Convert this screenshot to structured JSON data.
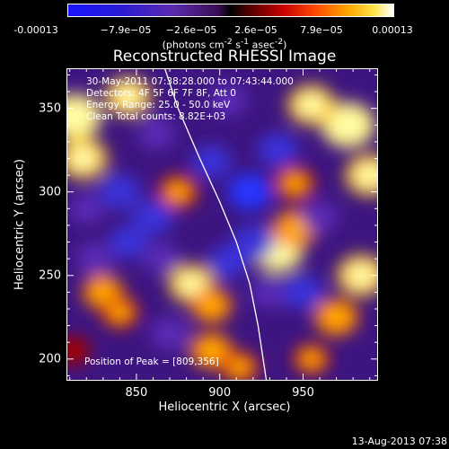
{
  "colorbar": {
    "tick_labels": [
      "-0.00013",
      "−7.9e−05",
      "−2.6e−05",
      "2.6e−05",
      "7.9e−05",
      "0.00013"
    ],
    "units_html": "(photons cm<sup>-2</sup> s<sup>-1</sup> asec<sup>-2</sup>)",
    "range": [
      -0.00013,
      0.00013
    ]
  },
  "chart_data": {
    "type": "heatmap",
    "title": "Reconstructed RHESSI Image",
    "xlabel": "Heliocentric X (arcsec)",
    "ylabel": "Heliocentric Y (arcsec)",
    "xlim": [
      808,
      995
    ],
    "ylim": [
      187,
      374
    ],
    "x_ticks": [
      850,
      900,
      950
    ],
    "y_ticks": [
      200,
      250,
      300,
      350
    ],
    "colormap": "rainbow-to-hot",
    "annotations": [
      "30-May-2011 07:38:28.000 to 07:43:44.000",
      "Detectors: 4F 5F 6F 7F 8F, Att 0",
      "Energy Range: 25.0 - 50.0 keV",
      "Clean    Total counts: 8.82E+03"
    ],
    "peak_label": "Position of Peak = [809,356]",
    "limb_points": [
      [
        867,
        374
      ],
      [
        875,
        350
      ],
      [
        888,
        320
      ],
      [
        900,
        294
      ],
      [
        910,
        270
      ],
      [
        918,
        245
      ],
      [
        923,
        220
      ],
      [
        928,
        187
      ]
    ],
    "hot_spots": [
      {
        "x": 813,
        "y": 345,
        "v": 1.0
      },
      {
        "x": 818,
        "y": 320,
        "v": 0.85
      },
      {
        "x": 845,
        "y": 357,
        "v": 0.75
      },
      {
        "x": 977,
        "y": 340,
        "v": 1.0
      },
      {
        "x": 955,
        "y": 352,
        "v": 0.8
      },
      {
        "x": 990,
        "y": 310,
        "v": 0.85
      },
      {
        "x": 945,
        "y": 305,
        "v": 0.55
      },
      {
        "x": 935,
        "y": 265,
        "v": 0.9
      },
      {
        "x": 945,
        "y": 278,
        "v": 0.7
      },
      {
        "x": 985,
        "y": 250,
        "v": 0.85
      },
      {
        "x": 970,
        "y": 225,
        "v": 0.7
      },
      {
        "x": 883,
        "y": 245,
        "v": 0.75
      },
      {
        "x": 895,
        "y": 232,
        "v": 0.6
      },
      {
        "x": 830,
        "y": 240,
        "v": 0.6
      },
      {
        "x": 840,
        "y": 228,
        "v": 0.5
      },
      {
        "x": 895,
        "y": 205,
        "v": 0.65
      },
      {
        "x": 812,
        "y": 205,
        "v": 0.4
      },
      {
        "x": 875,
        "y": 300,
        "v": 0.55
      },
      {
        "x": 912,
        "y": 195,
        "v": 0.5
      },
      {
        "x": 955,
        "y": 200,
        "v": 0.45
      },
      {
        "x": 865,
        "y": 260,
        "v": -0.4
      },
      {
        "x": 860,
        "y": 285,
        "v": -0.6
      },
      {
        "x": 895,
        "y": 318,
        "v": -0.5
      },
      {
        "x": 918,
        "y": 300,
        "v": -0.7
      },
      {
        "x": 840,
        "y": 300,
        "v": -0.6
      },
      {
        "x": 845,
        "y": 270,
        "v": -0.5
      },
      {
        "x": 920,
        "y": 270,
        "v": -0.6
      },
      {
        "x": 935,
        "y": 325,
        "v": -0.55
      },
      {
        "x": 930,
        "y": 240,
        "v": -0.45
      },
      {
        "x": 905,
        "y": 258,
        "v": -0.5
      },
      {
        "x": 870,
        "y": 215,
        "v": -0.45
      },
      {
        "x": 950,
        "y": 240,
        "v": -0.55
      },
      {
        "x": 825,
        "y": 260,
        "v": -0.4
      },
      {
        "x": 862,
        "y": 335,
        "v": -0.4
      },
      {
        "x": 905,
        "y": 355,
        "v": -0.4
      },
      {
        "x": 820,
        "y": 290,
        "v": -0.3
      },
      {
        "x": 960,
        "y": 285,
        "v": -0.4
      }
    ]
  },
  "footer": {
    "date_stamp": "13-Aug-2013 07:38"
  }
}
